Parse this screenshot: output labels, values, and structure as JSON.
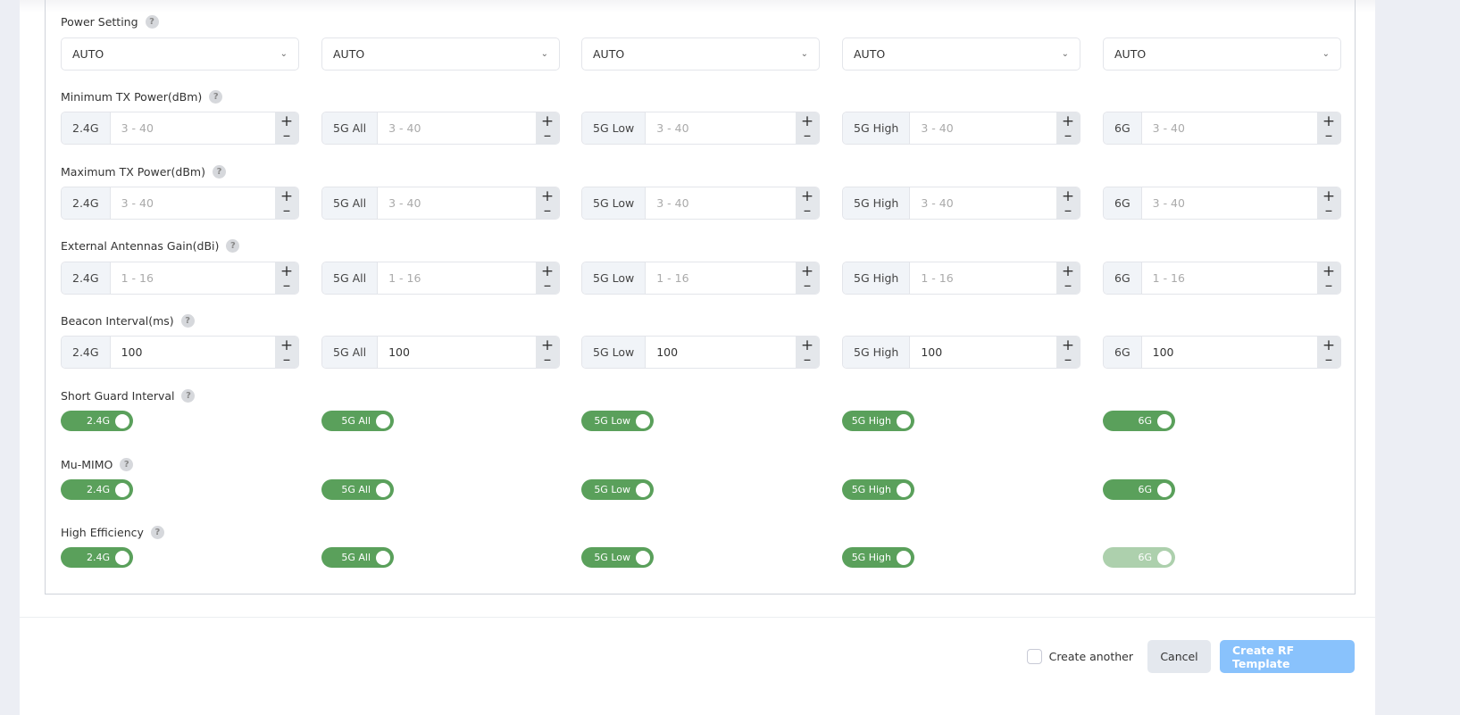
{
  "columns_x": [
    0,
    1,
    2,
    3,
    4
  ],
  "power_setting": {
    "label": "Power Setting",
    "values": [
      "AUTO",
      "AUTO",
      "AUTO",
      "AUTO",
      "AUTO"
    ]
  },
  "number_rows": [
    {
      "label": "Minimum TX Power(dBm)",
      "fields": [
        {
          "band": "2.4G",
          "value": "",
          "placeholder": "3 - 40"
        },
        {
          "band": "5G All",
          "value": "",
          "placeholder": "3 - 40"
        },
        {
          "band": "5G Low",
          "value": "",
          "placeholder": "3 - 40"
        },
        {
          "band": "5G High",
          "value": "",
          "placeholder": "3 - 40"
        },
        {
          "band": "6G",
          "value": "",
          "placeholder": "3 - 40"
        }
      ]
    },
    {
      "label": "Maximum TX Power(dBm)",
      "fields": [
        {
          "band": "2.4G",
          "value": "",
          "placeholder": "3 - 40"
        },
        {
          "band": "5G All",
          "value": "",
          "placeholder": "3 - 40"
        },
        {
          "band": "5G Low",
          "value": "",
          "placeholder": "3 - 40"
        },
        {
          "band": "5G High",
          "value": "",
          "placeholder": "3 - 40"
        },
        {
          "band": "6G",
          "value": "",
          "placeholder": "3 - 40"
        }
      ]
    },
    {
      "label": "External Antennas Gain(dBi)",
      "fields": [
        {
          "band": "2.4G",
          "value": "",
          "placeholder": "1 - 16"
        },
        {
          "band": "5G All",
          "value": "",
          "placeholder": "1 - 16"
        },
        {
          "band": "5G Low",
          "value": "",
          "placeholder": "1 - 16"
        },
        {
          "band": "5G High",
          "value": "",
          "placeholder": "1 - 16"
        },
        {
          "band": "6G",
          "value": "",
          "placeholder": "1 - 16"
        }
      ]
    },
    {
      "label": "Beacon Interval(ms)",
      "fields": [
        {
          "band": "2.4G",
          "value": "100",
          "placeholder": ""
        },
        {
          "band": "5G All",
          "value": "100",
          "placeholder": ""
        },
        {
          "band": "5G Low",
          "value": "100",
          "placeholder": ""
        },
        {
          "band": "5G High",
          "value": "100",
          "placeholder": ""
        },
        {
          "band": "6G",
          "value": "100",
          "placeholder": ""
        }
      ]
    }
  ],
  "toggle_rows": [
    {
      "label": "Short Guard Interval",
      "toggles": [
        {
          "band": "2.4G",
          "on": true,
          "disabled": false
        },
        {
          "band": "5G All",
          "on": true,
          "disabled": false
        },
        {
          "band": "5G Low",
          "on": true,
          "disabled": false
        },
        {
          "band": "5G High",
          "on": true,
          "disabled": false
        },
        {
          "band": "6G",
          "on": true,
          "disabled": false
        }
      ]
    },
    {
      "label": "Mu-MIMO",
      "toggles": [
        {
          "band": "2.4G",
          "on": true,
          "disabled": false
        },
        {
          "band": "5G All",
          "on": true,
          "disabled": false
        },
        {
          "band": "5G Low",
          "on": true,
          "disabled": false
        },
        {
          "band": "5G High",
          "on": true,
          "disabled": false
        },
        {
          "band": "6G",
          "on": true,
          "disabled": false
        }
      ]
    },
    {
      "label": "High Efficiency",
      "toggles": [
        {
          "band": "2.4G",
          "on": true,
          "disabled": false
        },
        {
          "band": "5G All",
          "on": true,
          "disabled": false
        },
        {
          "band": "5G Low",
          "on": true,
          "disabled": false
        },
        {
          "band": "5G High",
          "on": true,
          "disabled": false
        },
        {
          "band": "6G",
          "on": true,
          "disabled": true
        }
      ]
    }
  ],
  "footer": {
    "create_another": "Create another",
    "create_another_checked": false,
    "cancel": "Cancel",
    "submit": "Create RF Template"
  },
  "colors": {
    "toggle_on": "#5aa05b",
    "toggle_disabled": "#add0ad",
    "primary_disabled": "#89c2fc"
  }
}
